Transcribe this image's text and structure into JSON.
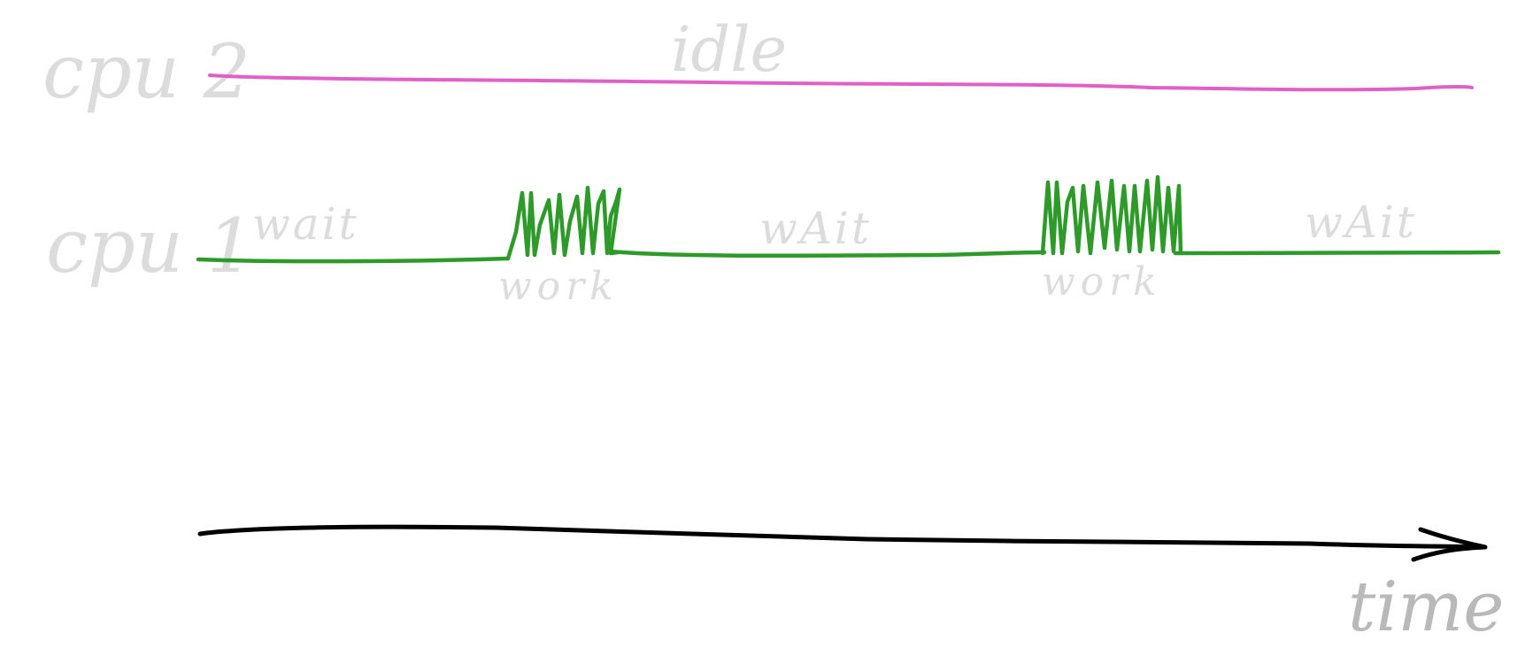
{
  "labels": {
    "cpu2": "cpu 2",
    "cpu1": "cpu 1",
    "idle": "idle",
    "wait_1": "wait",
    "wait_2": "wAit",
    "wait_3": "wAit",
    "work_1": "work",
    "work_2": "work",
    "time": "time"
  },
  "colors": {
    "cpu2_line": "#e060c8",
    "cpu1_line": "#2e9a2a",
    "axis": "#000000",
    "label_text": "#dcdcdc"
  },
  "timeline": {
    "cpu1_segments": [
      "wait",
      "work",
      "wait",
      "work",
      "wait"
    ],
    "cpu2_segments": [
      "idle"
    ]
  }
}
